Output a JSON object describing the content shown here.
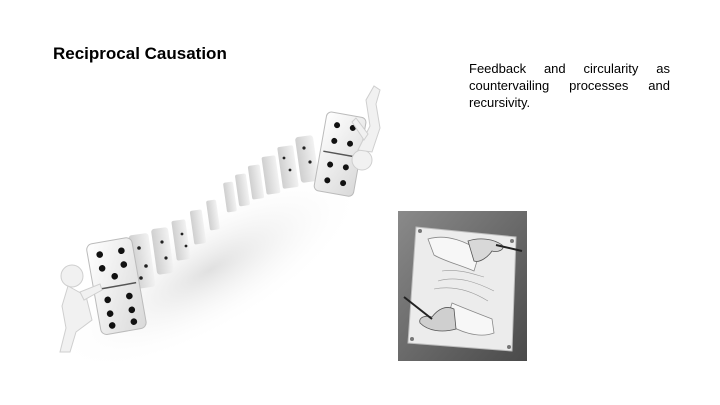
{
  "slide": {
    "title": "Reciprocal Causation",
    "body": "Feedback and circularity as countervailing processes and recursivity."
  },
  "images": {
    "dominoes": "falling-dominoes-with-figures",
    "drawing": "drawing-hands-engraving"
  },
  "colors": {
    "background": "#ffffff",
    "text": "#000000",
    "domino_face": "#f4f4f4",
    "pip": "#111111"
  }
}
